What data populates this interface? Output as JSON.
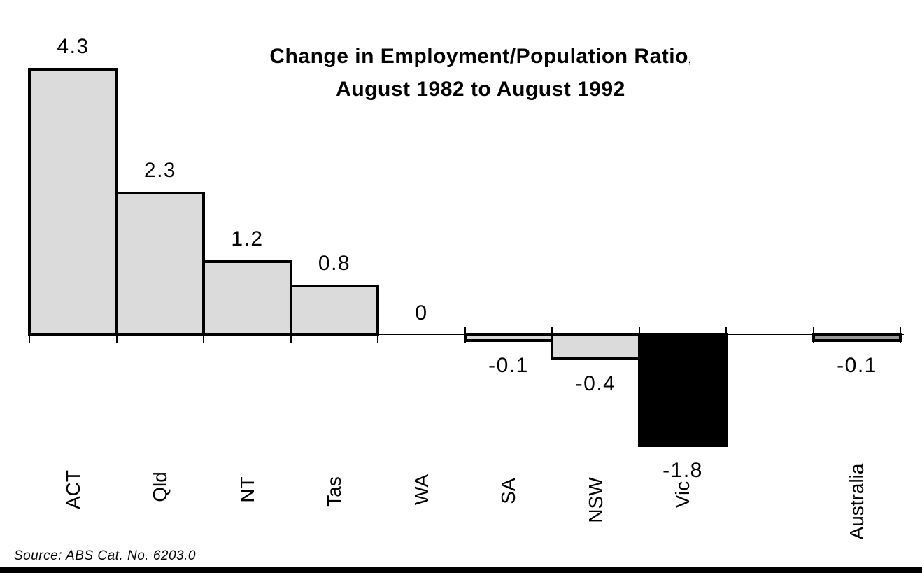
{
  "title": {
    "line1": "Change in Employment/Population Ratio",
    "line1_suffix": ",",
    "line2": "August 1982 to August 1992"
  },
  "source_note": "Source: ABS Cat. No. 6203.0",
  "chart_data": {
    "type": "bar",
    "title": "Change in Employment/Population Ratio, August 1982 to August 1992",
    "categories": [
      "ACT",
      "Qld",
      "NT",
      "Tas",
      "WA",
      "SA",
      "NSW",
      "Vic",
      "Australia"
    ],
    "values": [
      4.3,
      2.3,
      1.2,
      0.8,
      0,
      -0.1,
      -0.4,
      -1.8,
      -0.1
    ],
    "value_labels": [
      "4.3",
      "2.3",
      "1.2",
      "0.8",
      "0",
      "-0.1",
      "-0.4",
      "-1.8",
      "-0.1"
    ],
    "bar_colors": [
      "#DBDBDB",
      "#DBDBDB",
      "#DBDBDB",
      "#DBDBDB",
      "#DBDBDB",
      "#DBDBDB",
      "#DBDBDB",
      "#000000",
      "#999999"
    ],
    "bar_border_color": "#000000",
    "axis_color": "#000000",
    "xlabel": "",
    "ylabel": "",
    "ylim": [
      -2,
      4.5
    ],
    "grid": false,
    "legend": false,
    "gap_before_last_category": true,
    "value_label_position": "outside-end",
    "category_label_rotation_deg": 90
  }
}
